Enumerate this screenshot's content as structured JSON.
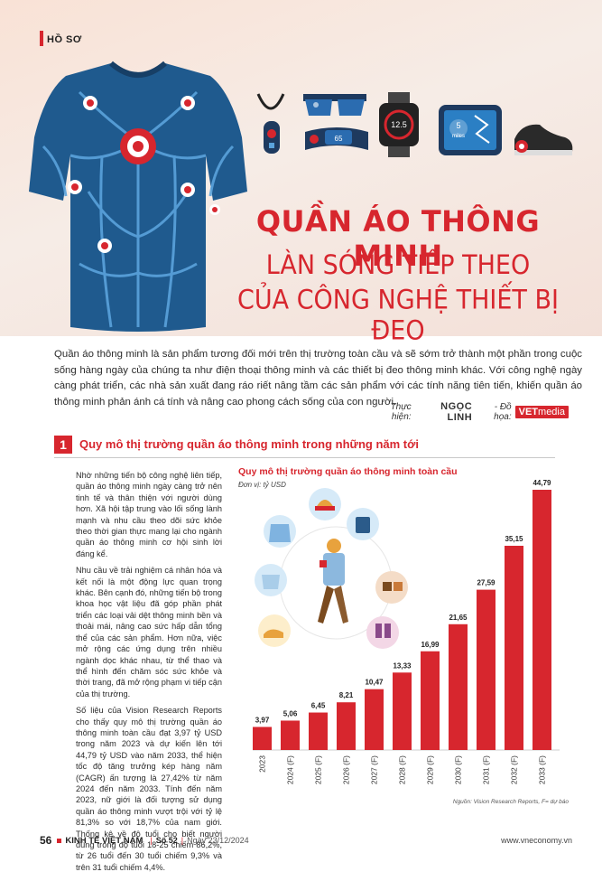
{
  "section_tag": "HỒ SƠ",
  "title": {
    "line1": "QUẦN ÁO THÔNG MINH",
    "line2": "LÀN SÓNG TIẾP THEO",
    "line3": "CỦA CÔNG NGHỆ THIẾT BỊ ĐEO"
  },
  "devices": {
    "watch_value": "12.5",
    "tablet_value": "5",
    "tablet_unit": "miles",
    "band_value": "65"
  },
  "intro": "Quần áo thông minh là sản phẩm tương đối mới trên thị trường toàn cầu và sẽ sớm trở thành một phần trong cuộc sống hàng ngày của chúng ta như điện thoại thông minh và các thiết bị đeo thông minh khác. Với công nghệ ngày càng phát triển, các nhà sản xuất đang ráo riết nâng tầm các sản phẩm với các tính năng tiên tiến, khiến quần áo thông minh phản ánh cá tính và nâng cao phong cách sống của con người.",
  "credits": {
    "performed_label": "Thực hiện:",
    "author": "NGỌC LINH",
    "graphic_label": "- Đồ họa:",
    "graphic_brand_a": "VET",
    "graphic_brand_b": "media"
  },
  "section1": {
    "number": "1",
    "title": "Quy mô thị trường quần áo thông minh trong những năm tới",
    "paragraphs": [
      "Nhờ những tiến bộ công nghệ liên tiếp, quần áo thông minh ngày càng trở nên tinh tế và thân thiện với người dùng hơn. Xã hội tập trung vào lối sống lành mạnh và nhu cầu theo dõi sức khỏe theo thời gian thực mang lại cho ngành quần áo thông minh cơ hội sinh lời đáng kể.",
      "Nhu cầu về trải nghiệm cá nhân hóa và kết nối là một động lực quan trọng khác. Bên cạnh đó, những tiến bộ trong khoa học vật liệu đã góp phần phát triển các loại vải dệt thông minh bền và thoải mái, nâng cao sức hấp dẫn tổng thể của các sản phẩm. Hơn nữa, việc mở rộng các ứng dụng trên nhiều ngành dọc khác nhau, từ thể thao và thể hình đến chăm sóc sức khỏe và thời trang, đã mở rộng phạm vi tiếp cận của thị trường.",
      "Số liệu của Vision Research Reports cho thấy quy mô thị trường quần áo thông minh toàn cầu đạt 3,97 tỷ USD trong năm 2023 và dự kiến lên tới 44,79 tỷ USD vào năm 2033, thể hiện tốc độ tăng trưởng kép hàng năm (CAGR) ấn tượng là 27,42% từ năm 2024 đến năm 2033. Tính đến năm 2023, nữ giới là đối tượng sử dụng quần áo thông minh vượt trội với tỷ lệ 81,3% so với 18,7% của nam giới. Thống kê về độ tuổi cho biết người dùng trong độ tuổi 18-25 chiếm 86,2%, từ 26 tuổi đến 30 tuổi chiếm 9,3% và trên 31 tuổi chiếm 4,4%."
    ]
  },
  "chart_data": {
    "type": "bar",
    "title": "Quy mô thị trường quần áo thông minh toàn cầu",
    "unit": "Đơn vị: tỷ USD",
    "categories": [
      "2023",
      "2024 (F)",
      "2025 (F)",
      "2026 (F)",
      "2027 (F)",
      "2028 (F)",
      "2029 (F)",
      "2030 (F)",
      "2031 (F)",
      "2032 (F)",
      "2033 (F)"
    ],
    "values": [
      3.97,
      5.06,
      6.45,
      8.21,
      10.47,
      13.33,
      16.99,
      21.65,
      27.59,
      35.15,
      44.79
    ],
    "value_labels": [
      "3,97",
      "5,06",
      "6,45",
      "8,21",
      "10,47",
      "13,33",
      "16,99",
      "21,65",
      "27,59",
      "35,15",
      "44,79"
    ],
    "bar_color": "#d7262e",
    "source": "Nguồn: Vision Research Reports, F= dự báo"
  },
  "footer": {
    "page": "56",
    "magazine": "KINH TẾ VIỆT NAM",
    "issue": "Số 52",
    "date": "Ngày 23/12/2024",
    "website": "www.vneconomy.vn"
  },
  "colors": {
    "accent": "#d7262e",
    "shirt": "#1f5a8e",
    "shirt_seams": "#5aa3dc"
  }
}
